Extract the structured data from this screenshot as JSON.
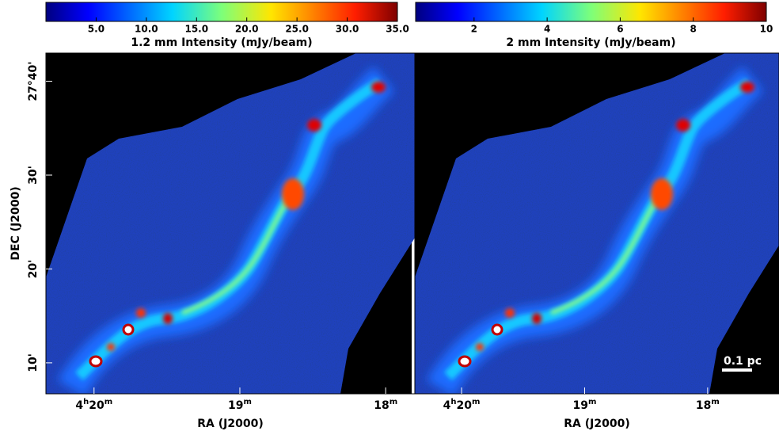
{
  "chart_data": [
    {
      "type": "image",
      "colorbar": {
        "label": "1.2 mm Intensity (mJy/beam)",
        "clim": [
          0,
          35
        ],
        "ticks": [
          {
            "value": 5,
            "label": "5.0"
          },
          {
            "value": 10,
            "label": "10.0"
          },
          {
            "value": 15,
            "label": "15.0"
          },
          {
            "value": 20,
            "label": "20.0"
          },
          {
            "value": 25,
            "label": "25.0"
          },
          {
            "value": 30,
            "label": "30.0"
          },
          {
            "value": 35,
            "label": "35.0"
          }
        ]
      },
      "xlabel": "RA (J2000)",
      "ylabel": "DEC (J2000)",
      "xlim": [
        260.33,
        257.8
      ],
      "ylim": [
        6.7,
        43.0
      ],
      "xticks": [
        {
          "value": 260,
          "label": "4h20m"
        },
        {
          "value": 259,
          "label": "19m"
        },
        {
          "value": 258,
          "label": "18m"
        }
      ],
      "yticks": [
        {
          "value": 10,
          "label": "10'"
        },
        {
          "value": 20,
          "label": "20'"
        },
        {
          "value": 30,
          "label": "30'"
        },
        {
          "value": 40,
          "label": "27°40'"
        }
      ]
    },
    {
      "type": "image",
      "colorbar": {
        "label": "2 mm Intensity (mJy/beam)",
        "clim": [
          0.4,
          10
        ],
        "ticks": [
          2,
          4,
          6,
          8,
          10
        ]
      },
      "xlabel": "RA (J2000)",
      "xlim": [
        260.38,
        257.42
      ],
      "ylim": [
        6.7,
        43.0
      ],
      "xticks": [
        {
          "value": 260,
          "label": "4h20m"
        },
        {
          "value": 259,
          "label": "19m"
        },
        {
          "value": 258,
          "label": "18m"
        }
      ],
      "annotation": "0.1 pc"
    }
  ]
}
